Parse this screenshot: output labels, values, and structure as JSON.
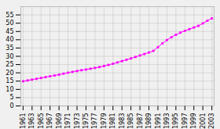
{
  "chart_data": {
    "type": "line",
    "x": [
      1961,
      1962,
      1963,
      1964,
      1965,
      1966,
      1967,
      1968,
      1969,
      1970,
      1971,
      1972,
      1973,
      1974,
      1975,
      1976,
      1977,
      1978,
      1979,
      1980,
      1981,
      1982,
      1983,
      1984,
      1985,
      1986,
      1987,
      1988,
      1989,
      1990,
      1991,
      1992,
      1993,
      1994,
      1995,
      1996,
      1997,
      1998,
      1999,
      2000,
      2001,
      2002,
      2003
    ],
    "values": [
      14.9,
      15.4,
      15.9,
      16.4,
      16.9,
      17.4,
      17.9,
      18.4,
      18.9,
      19.5,
      20.1,
      20.6,
      21.1,
      21.6,
      22.0,
      22.5,
      23.0,
      23.5,
      24.1,
      24.8,
      25.5,
      26.3,
      27.1,
      27.9,
      28.7,
      29.6,
      30.5,
      31.4,
      32.3,
      33.3,
      35.5,
      37.8,
      39.8,
      41.5,
      43.0,
      44.3,
      45.4,
      46.4,
      47.4,
      48.4,
      49.9,
      51.5,
      52.9
    ],
    "color": "#FF00FF",
    "marker": "square",
    "xlim": [
      1960.5,
      2003.5
    ],
    "xticks": [
      1961,
      1963,
      1965,
      1967,
      1969,
      1971,
      1973,
      1975,
      1977,
      1979,
      1981,
      1983,
      1985,
      1987,
      1989,
      1991,
      1993,
      1995,
      1997,
      1999,
      2001,
      2003
    ],
    "ylim": [
      0,
      60
    ],
    "yticks": [
      0,
      5,
      10,
      15,
      20,
      25,
      30,
      35,
      40,
      45,
      50,
      55
    ],
    "grid": true
  }
}
